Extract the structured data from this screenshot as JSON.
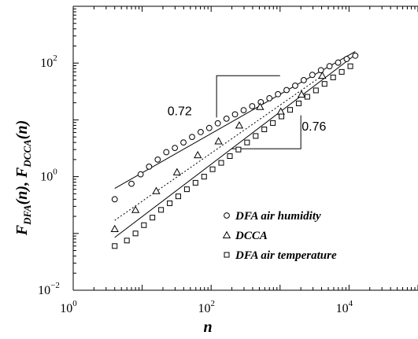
{
  "chart_data": {
    "type": "scatter",
    "title": "",
    "xlabel": "n",
    "ylabel": {
      "F1": "F",
      "sub1": "DFA",
      "mid": "(n), ",
      "F2": "F",
      "sub2": "DCCA",
      "end": "(n)"
    },
    "x_scale": "log",
    "y_scale": "log",
    "xlim": [
      1,
      100000
    ],
    "ylim": [
      0.01,
      1000
    ],
    "x_ticks": [
      {
        "value": 1,
        "base": "10",
        "exp": "0"
      },
      {
        "value": 100,
        "base": "10",
        "exp": "2"
      },
      {
        "value": 10000,
        "base": "10",
        "exp": "4"
      }
    ],
    "y_ticks": [
      {
        "value": 0.01,
        "base": "10",
        "exp": "−2"
      },
      {
        "value": 1,
        "base": "10",
        "exp": "0"
      },
      {
        "value": 100,
        "base": "10",
        "exp": "2"
      }
    ],
    "series": [
      {
        "name": "DFA air humidity",
        "marker": "circle",
        "x": [
          4,
          7,
          9.5,
          12.6,
          16.8,
          22.4,
          29.8,
          39.7,
          52.9,
          70.5,
          93.9,
          125,
          167,
          222,
          296,
          394,
          525,
          700,
          932,
          1242,
          1655,
          2205,
          2937,
          3913,
          5213,
          6945,
          9252,
          12325
        ],
        "y": [
          0.4,
          0.75,
          1.1,
          1.5,
          2.0,
          2.7,
          3.2,
          4.0,
          5.0,
          6.1,
          7.2,
          8.7,
          10.5,
          12.5,
          14.8,
          17.4,
          20.5,
          24.0,
          28.3,
          33.5,
          40.0,
          50.0,
          62.0,
          75.0,
          88.0,
          102.0,
          118.0,
          135.0
        ]
      },
      {
        "name": "DCCA",
        "marker": "triangle",
        "x": [
          4,
          8,
          16,
          32,
          64,
          128,
          256,
          512,
          1024,
          2048,
          4096
        ],
        "y": [
          0.12,
          0.26,
          0.56,
          1.2,
          2.4,
          4.2,
          8.0,
          17.0,
          14.0,
          28.0,
          60.0
        ]
      },
      {
        "name": "DFA air temperature",
        "marker": "square",
        "x": [
          4,
          6,
          8,
          10.6,
          14.1,
          18.8,
          25.1,
          33.4,
          44.5,
          59.3,
          79.1,
          105,
          140,
          187,
          249,
          332,
          443,
          590,
          786,
          1048,
          1397,
          1862,
          2482,
          3308,
          4409,
          5877,
          7834,
          10442
        ],
        "y": [
          0.06,
          0.075,
          0.1,
          0.14,
          0.19,
          0.26,
          0.34,
          0.45,
          0.6,
          0.78,
          1.0,
          1.35,
          1.75,
          2.3,
          3.0,
          4.0,
          5.2,
          6.8,
          8.8,
          11.5,
          15.0,
          19.5,
          25.5,
          33.0,
          43.0,
          56.0,
          70.0,
          88.0
        ]
      }
    ],
    "fit_lines": [
      {
        "series": "DFA air humidity",
        "style": "solid",
        "x": [
          4,
          12325
        ],
        "y": [
          0.62,
          160
        ]
      },
      {
        "series": "DCCA",
        "style": "dotted",
        "x": [
          4,
          4096
        ],
        "y": [
          0.17,
          60
        ]
      },
      {
        "series": "DFA air temperature",
        "style": "solid",
        "x": [
          4,
          12325
        ],
        "y": [
          0.085,
          140
        ]
      }
    ],
    "slope_boxes": [
      {
        "x1": 120,
        "x2": 1000,
        "y_low": 11,
        "y_high": 60
      },
      {
        "x1": 200,
        "x2": 2000,
        "y_low": 3.1,
        "y_high": 12
      }
    ],
    "annotations": [
      {
        "text": "0.72",
        "x": 35,
        "y": 12
      },
      {
        "text": "0.76",
        "x": 3100,
        "y": 6.5
      }
    ],
    "legend": {
      "placement": "bottom-right"
    }
  }
}
